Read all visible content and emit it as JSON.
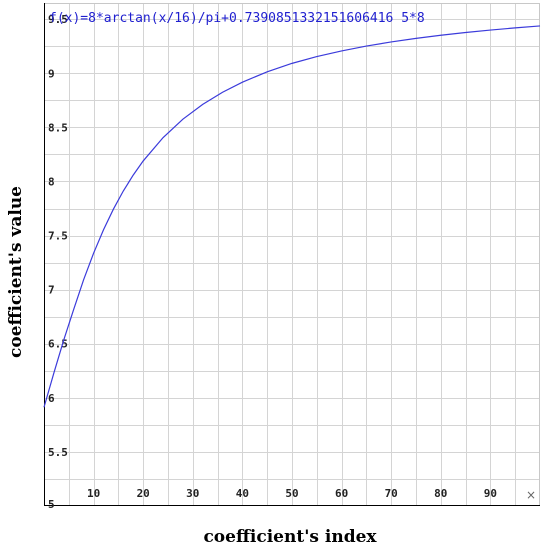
{
  "chart_data": {
    "type": "line",
    "title": "f(x)=8*arctan(x/16)/pi+0.739085133215160641 65*8",
    "function_label": "f(x)=8*arctan(x/16)/pi+0.7390851332151606416 5*8",
    "xlabel": "coefficient's index",
    "ylabel": "coefficient's value",
    "xlim": [
      0,
      100
    ],
    "ylim": [
      5,
      9.65
    ],
    "x_ticks": [
      10,
      20,
      30,
      40,
      50,
      60,
      70,
      80,
      90
    ],
    "y_ticks": [
      5.5,
      6,
      6.5,
      7,
      7.5,
      8,
      8.5,
      9,
      9.5
    ],
    "y_tick_labels": [
      "5.5",
      "6",
      "6.5",
      "7",
      "7.5",
      "8",
      "8.5",
      "9",
      "9.5"
    ],
    "y_bottom_label": "5",
    "grid": true,
    "series": [
      {
        "color": "#3b3bdb",
        "x": [
          0,
          2,
          4,
          6,
          8,
          10,
          12,
          14,
          16,
          18,
          20,
          24,
          28,
          32,
          36,
          40,
          45,
          50,
          55,
          60,
          65,
          70,
          75,
          80,
          85,
          90,
          95,
          100
        ],
        "y": [
          5.913,
          6.231,
          6.537,
          6.82,
          7.093,
          7.337,
          7.554,
          7.745,
          7.913,
          8.06,
          8.19,
          8.405,
          8.576,
          8.713,
          8.825,
          8.918,
          9.014,
          9.092,
          9.155,
          9.207,
          9.252,
          9.29,
          9.323,
          9.352,
          9.377,
          9.4,
          9.42,
          9.438
        ]
      }
    ]
  },
  "close_glyph": "×"
}
